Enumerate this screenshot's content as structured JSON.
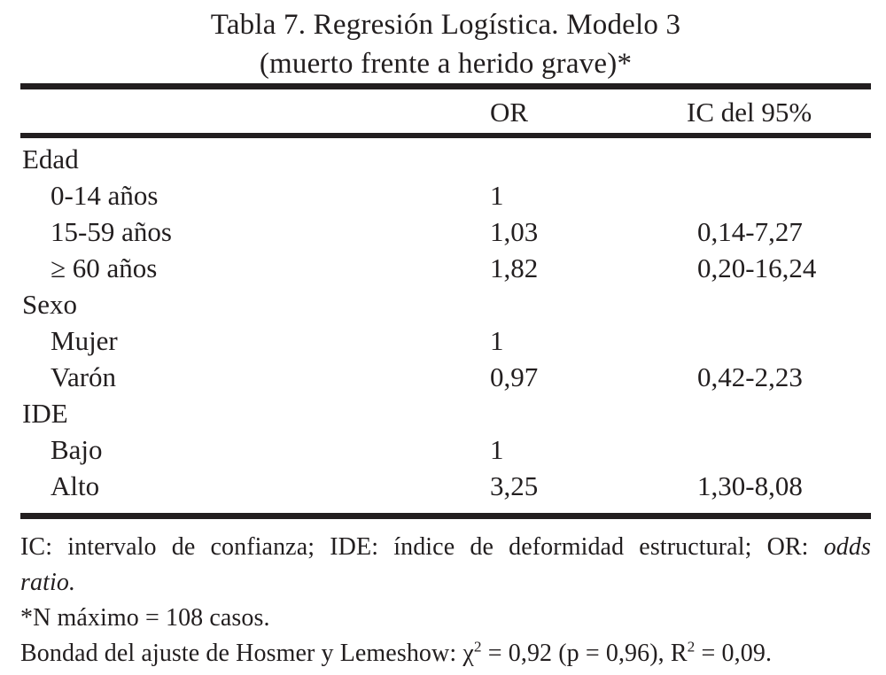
{
  "title": {
    "line1": "Tabla 7. Regresión Logística. Modelo 3",
    "line2": "(muerto frente a herido grave)*"
  },
  "table": {
    "header": {
      "or": "OR",
      "ic": "IC del 95%"
    },
    "rows": [
      {
        "label": "Edad",
        "indent": false,
        "or": "",
        "ic": ""
      },
      {
        "label": "0-14 años",
        "indent": true,
        "or": "1",
        "ic": ""
      },
      {
        "label": "15-59 años",
        "indent": true,
        "or": "1,03",
        "ic": "0,14-7,27"
      },
      {
        "label": "≥ 60 años",
        "indent": true,
        "or": "1,82",
        "ic": "0,20-16,24"
      },
      {
        "label": "Sexo",
        "indent": false,
        "or": "",
        "ic": ""
      },
      {
        "label": "Mujer",
        "indent": true,
        "or": "1",
        "ic": ""
      },
      {
        "label": "Varón",
        "indent": true,
        "or": "0,97",
        "ic": "0,42-2,23"
      },
      {
        "label": "IDE",
        "indent": false,
        "or": "",
        "ic": ""
      },
      {
        "label": "Bajo",
        "indent": true,
        "or": "1",
        "ic": ""
      },
      {
        "label": "Alto",
        "indent": true,
        "or": "3,25",
        "ic": "1,30-8,08"
      }
    ]
  },
  "footnotes": {
    "abbrev_normal": "IC: intervalo de confianza; IDE: índice de deformidad estructural; OR: ",
    "abbrev_italic": "odds",
    "abbrev_line2": "ratio.",
    "n_note": "*N máximo = 108 casos.",
    "fit_prefix": "Bondad del ajuste de Hosmer y Lemeshow: ",
    "chi": "χ",
    "chi_sup": "2",
    "fit_mid": " = 0,92 (p = 0,96), R",
    "r_sup": "2",
    "fit_end": " = 0,09."
  },
  "colors": {
    "text": "#221e1f",
    "rule": "#221e1f",
    "background": "#ffffff"
  }
}
